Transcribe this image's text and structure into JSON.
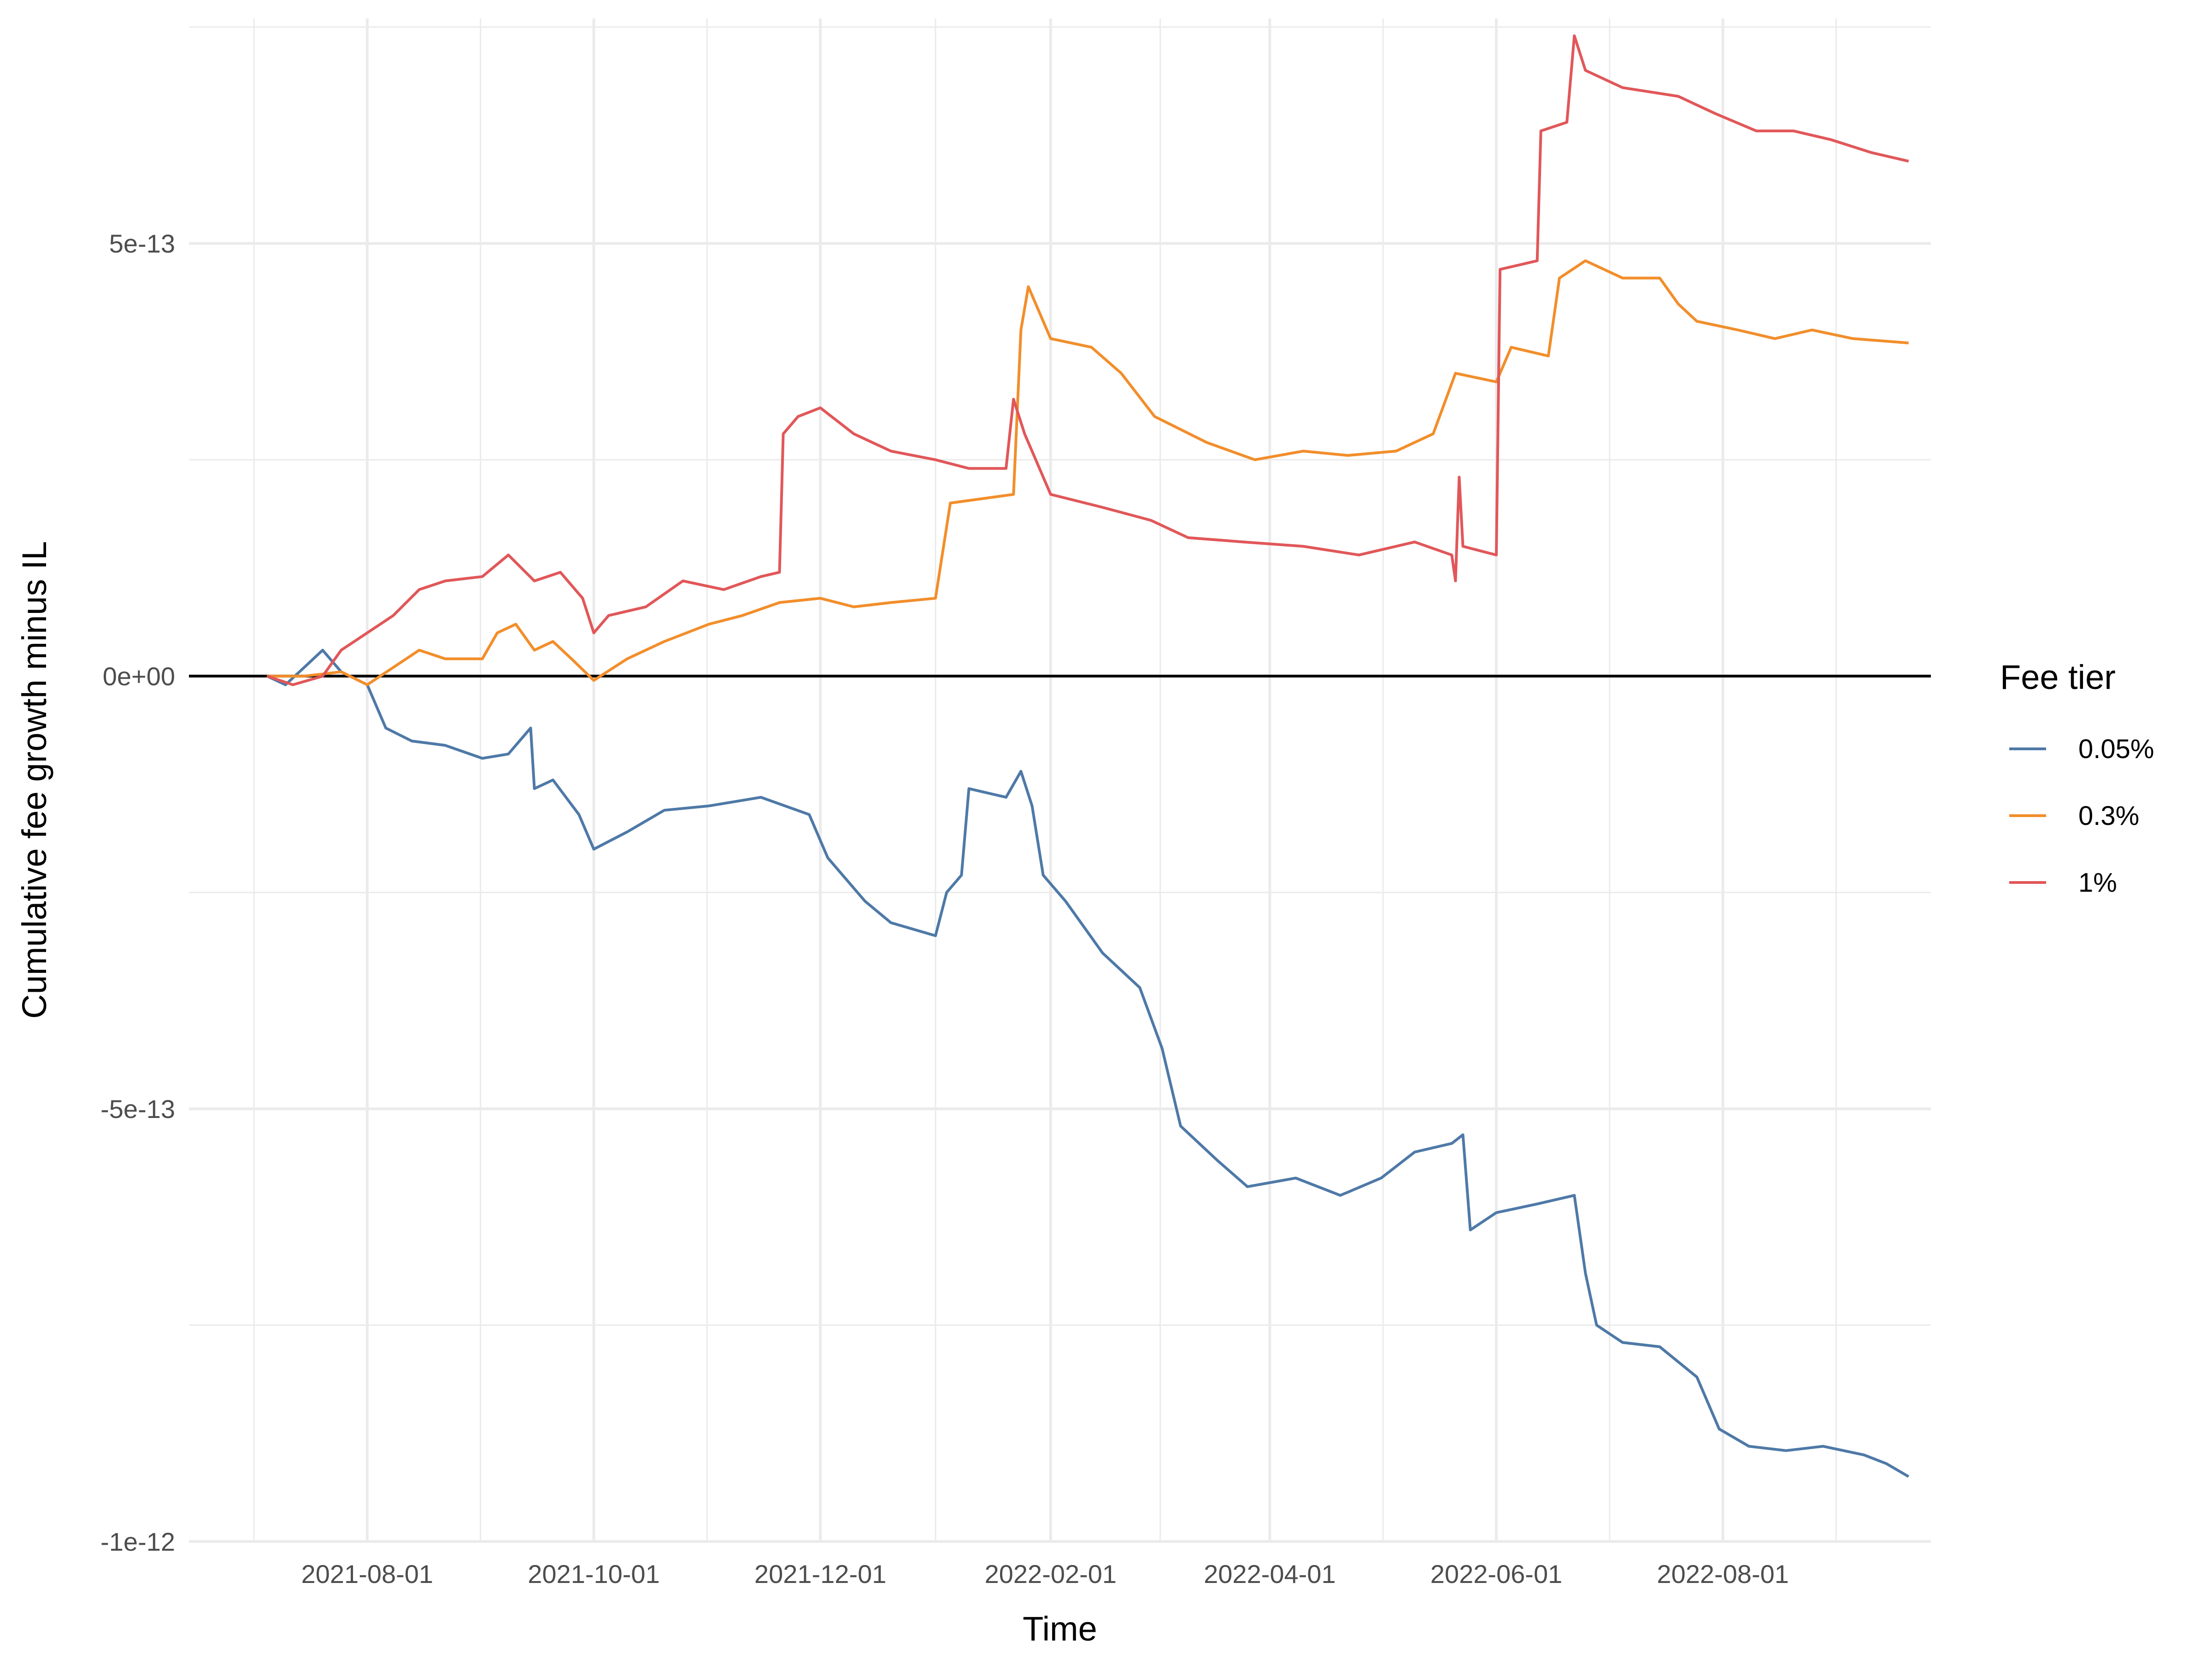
{
  "chart_data": {
    "type": "line",
    "title": "",
    "xlabel": "Time",
    "ylabel": "Cumulative fee growth minus IL",
    "legend": {
      "title": "Fee tier",
      "position": "right"
    },
    "grid": true,
    "zero_line": true,
    "xlim": [
      "2021-06-14",
      "2022-09-26"
    ],
    "ylim": [
      -1e-12,
      7.6e-13
    ],
    "x_ticks": [
      {
        "date": "2021-08-01",
        "label": "2021-08-01"
      },
      {
        "date": "2021-10-01",
        "label": "2021-10-01"
      },
      {
        "date": "2021-12-01",
        "label": "2021-12-01"
      },
      {
        "date": "2022-02-01",
        "label": "2022-02-01"
      },
      {
        "date": "2022-04-01",
        "label": "2022-04-01"
      },
      {
        "date": "2022-06-01",
        "label": "2022-06-01"
      },
      {
        "date": "2022-08-01",
        "label": "2022-08-01"
      }
    ],
    "y_ticks": [
      {
        "value": 5e-13,
        "label": "5e-13"
      },
      {
        "value": 0,
        "label": "0e+00"
      },
      {
        "value": -5e-13,
        "label": "-5e-13"
      },
      {
        "value": -1e-12,
        "label": "-1e-12"
      }
    ],
    "series": [
      {
        "name": "0.05%",
        "color": "#4e79a7",
        "points": [
          [
            "2021-07-05",
            0
          ],
          [
            "2021-07-10",
            -1e-14
          ],
          [
            "2021-07-15",
            1e-14
          ],
          [
            "2021-07-20",
            3e-14
          ],
          [
            "2021-07-25",
            5e-15
          ],
          [
            "2021-08-01",
            -1e-14
          ],
          [
            "2021-08-06",
            -6e-14
          ],
          [
            "2021-08-13",
            -7.5e-14
          ],
          [
            "2021-08-22",
            -8e-14
          ],
          [
            "2021-09-01",
            -9.5e-14
          ],
          [
            "2021-09-08",
            -9e-14
          ],
          [
            "2021-09-14",
            -6e-14
          ],
          [
            "2021-09-15",
            -1.3e-13
          ],
          [
            "2021-09-20",
            -1.2e-13
          ],
          [
            "2021-09-27",
            -1.6e-13
          ],
          [
            "2021-10-01",
            -2e-13
          ],
          [
            "2021-10-10",
            -1.8e-13
          ],
          [
            "2021-10-20",
            -1.55e-13
          ],
          [
            "2021-11-01",
            -1.5e-13
          ],
          [
            "2021-11-15",
            -1.4e-13
          ],
          [
            "2021-11-28",
            -1.6e-13
          ],
          [
            "2021-12-03",
            -2.1e-13
          ],
          [
            "2021-12-13",
            -2.6e-13
          ],
          [
            "2021-12-20",
            -2.85e-13
          ],
          [
            "2022-01-01",
            -3e-13
          ],
          [
            "2022-01-04",
            -2.5e-13
          ],
          [
            "2022-01-08",
            -2.3e-13
          ],
          [
            "2022-01-10",
            -1.3e-13
          ],
          [
            "2022-01-20",
            -1.4e-13
          ],
          [
            "2022-01-24",
            -1.1e-13
          ],
          [
            "2022-01-27",
            -1.5e-13
          ],
          [
            "2022-01-30",
            -2.3e-13
          ],
          [
            "2022-02-05",
            -2.6e-13
          ],
          [
            "2022-02-15",
            -3.2e-13
          ],
          [
            "2022-02-25",
            -3.6e-13
          ],
          [
            "2022-03-03",
            -4.3e-13
          ],
          [
            "2022-03-08",
            -5.2e-13
          ],
          [
            "2022-03-18",
            -5.6e-13
          ],
          [
            "2022-03-26",
            -5.9e-13
          ],
          [
            "2022-04-08",
            -5.8e-13
          ],
          [
            "2022-04-20",
            -6e-13
          ],
          [
            "2022-05-01",
            -5.8e-13
          ],
          [
            "2022-05-10",
            -5.5e-13
          ],
          [
            "2022-05-20",
            -5.4e-13
          ],
          [
            "2022-05-23",
            -5.3e-13
          ],
          [
            "2022-05-25",
            -6.4e-13
          ],
          [
            "2022-06-01",
            -6.2e-13
          ],
          [
            "2022-06-12",
            -6.1e-13
          ],
          [
            "2022-06-22",
            -6e-13
          ],
          [
            "2022-06-25",
            -6.9e-13
          ],
          [
            "2022-06-28",
            -7.5e-13
          ],
          [
            "2022-07-05",
            -7.7e-13
          ],
          [
            "2022-07-15",
            -7.75e-13
          ],
          [
            "2022-07-25",
            -8.1e-13
          ],
          [
            "2022-07-31",
            -8.7e-13
          ],
          [
            "2022-08-08",
            -8.9e-13
          ],
          [
            "2022-08-18",
            -8.95e-13
          ],
          [
            "2022-08-28",
            -8.9e-13
          ],
          [
            "2022-09-08",
            -9e-13
          ],
          [
            "2022-09-14",
            -9.1e-13
          ],
          [
            "2022-09-20",
            -9.25e-13
          ]
        ]
      },
      {
        "name": "0.3%",
        "color": "#f28e2b",
        "points": [
          [
            "2021-07-05",
            0
          ],
          [
            "2021-07-15",
            0
          ],
          [
            "2021-07-25",
            5e-15
          ],
          [
            "2021-08-01",
            -1e-14
          ],
          [
            "2021-08-08",
            1e-14
          ],
          [
            "2021-08-15",
            3e-14
          ],
          [
            "2021-08-22",
            2e-14
          ],
          [
            "2021-09-01",
            2e-14
          ],
          [
            "2021-09-05",
            5e-14
          ],
          [
            "2021-09-10",
            6e-14
          ],
          [
            "2021-09-15",
            3e-14
          ],
          [
            "2021-09-20",
            4e-14
          ],
          [
            "2021-09-25",
            2e-14
          ],
          [
            "2021-10-01",
            -5e-15
          ],
          [
            "2021-10-10",
            2e-14
          ],
          [
            "2021-10-20",
            4e-14
          ],
          [
            "2021-11-01",
            6e-14
          ],
          [
            "2021-11-10",
            7e-14
          ],
          [
            "2021-11-20",
            8.5e-14
          ],
          [
            "2021-12-01",
            9e-14
          ],
          [
            "2021-12-10",
            8e-14
          ],
          [
            "2021-12-20",
            8.5e-14
          ],
          [
            "2022-01-01",
            9e-14
          ],
          [
            "2022-01-05",
            2e-13
          ],
          [
            "2022-01-22",
            2.1e-13
          ],
          [
            "2022-01-24",
            4e-13
          ],
          [
            "2022-01-26",
            4.5e-13
          ],
          [
            "2022-02-01",
            3.9e-13
          ],
          [
            "2022-02-12",
            3.8e-13
          ],
          [
            "2022-02-20",
            3.5e-13
          ],
          [
            "2022-03-01",
            3e-13
          ],
          [
            "2022-03-15",
            2.7e-13
          ],
          [
            "2022-03-28",
            2.5e-13
          ],
          [
            "2022-04-10",
            2.6e-13
          ],
          [
            "2022-04-22",
            2.55e-13
          ],
          [
            "2022-05-05",
            2.6e-13
          ],
          [
            "2022-05-15",
            2.8e-13
          ],
          [
            "2022-05-21",
            3.5e-13
          ],
          [
            "2022-06-01",
            3.4e-13
          ],
          [
            "2022-06-05",
            3.8e-13
          ],
          [
            "2022-06-15",
            3.7e-13
          ],
          [
            "2022-06-18",
            4.6e-13
          ],
          [
            "2022-06-25",
            4.8e-13
          ],
          [
            "2022-07-05",
            4.6e-13
          ],
          [
            "2022-07-15",
            4.6e-13
          ],
          [
            "2022-07-20",
            4.3e-13
          ],
          [
            "2022-07-25",
            4.1e-13
          ],
          [
            "2022-08-05",
            4e-13
          ],
          [
            "2022-08-15",
            3.9e-13
          ],
          [
            "2022-08-25",
            4e-13
          ],
          [
            "2022-09-05",
            3.9e-13
          ],
          [
            "2022-09-20",
            3.85e-13
          ]
        ]
      },
      {
        "name": "1%",
        "color": "#e15759",
        "points": [
          [
            "2021-07-05",
            0
          ],
          [
            "2021-07-12",
            -1e-14
          ],
          [
            "2021-07-20",
            0
          ],
          [
            "2021-07-25",
            3e-14
          ],
          [
            "2021-08-01",
            5e-14
          ],
          [
            "2021-08-08",
            7e-14
          ],
          [
            "2021-08-15",
            1e-13
          ],
          [
            "2021-08-22",
            1.1e-13
          ],
          [
            "2021-09-01",
            1.15e-13
          ],
          [
            "2021-09-08",
            1.4e-13
          ],
          [
            "2021-09-15",
            1.1e-13
          ],
          [
            "2021-09-22",
            1.2e-13
          ],
          [
            "2021-09-28",
            9e-14
          ],
          [
            "2021-10-01",
            5e-14
          ],
          [
            "2021-10-05",
            7e-14
          ],
          [
            "2021-10-15",
            8e-14
          ],
          [
            "2021-10-25",
            1.1e-13
          ],
          [
            "2021-11-05",
            1e-13
          ],
          [
            "2021-11-15",
            1.15e-13
          ],
          [
            "2021-11-20",
            1.2e-13
          ],
          [
            "2021-11-21",
            2.8e-13
          ],
          [
            "2021-11-25",
            3e-13
          ],
          [
            "2021-12-01",
            3.1e-13
          ],
          [
            "2021-12-10",
            2.8e-13
          ],
          [
            "2021-12-20",
            2.6e-13
          ],
          [
            "2022-01-01",
            2.5e-13
          ],
          [
            "2022-01-10",
            2.4e-13
          ],
          [
            "2022-01-20",
            2.4e-13
          ],
          [
            "2022-01-22",
            3.2e-13
          ],
          [
            "2022-01-25",
            2.8e-13
          ],
          [
            "2022-01-28",
            2.5e-13
          ],
          [
            "2022-02-01",
            2.1e-13
          ],
          [
            "2022-02-15",
            1.95e-13
          ],
          [
            "2022-02-28",
            1.8e-13
          ],
          [
            "2022-03-10",
            1.6e-13
          ],
          [
            "2022-03-25",
            1.55e-13
          ],
          [
            "2022-04-10",
            1.5e-13
          ],
          [
            "2022-04-25",
            1.4e-13
          ],
          [
            "2022-05-10",
            1.55e-13
          ],
          [
            "2022-05-20",
            1.4e-13
          ],
          [
            "2022-05-21",
            1.1e-13
          ],
          [
            "2022-05-22",
            2.3e-13
          ],
          [
            "2022-05-23",
            1.5e-13
          ],
          [
            "2022-06-01",
            1.4e-13
          ],
          [
            "2022-06-02",
            4.7e-13
          ],
          [
            "2022-06-12",
            4.8e-13
          ],
          [
            "2022-06-13",
            6.3e-13
          ],
          [
            "2022-06-20",
            6.4e-13
          ],
          [
            "2022-06-22",
            7.4e-13
          ],
          [
            "2022-06-25",
            7e-13
          ],
          [
            "2022-07-05",
            6.8e-13
          ],
          [
            "2022-07-20",
            6.7e-13
          ],
          [
            "2022-07-30",
            6.5e-13
          ],
          [
            "2022-08-10",
            6.3e-13
          ],
          [
            "2022-08-20",
            6.3e-13
          ],
          [
            "2022-08-30",
            6.2e-13
          ],
          [
            "2022-09-10",
            6.05e-13
          ],
          [
            "2022-09-20",
            5.95e-13
          ]
        ]
      }
    ]
  }
}
